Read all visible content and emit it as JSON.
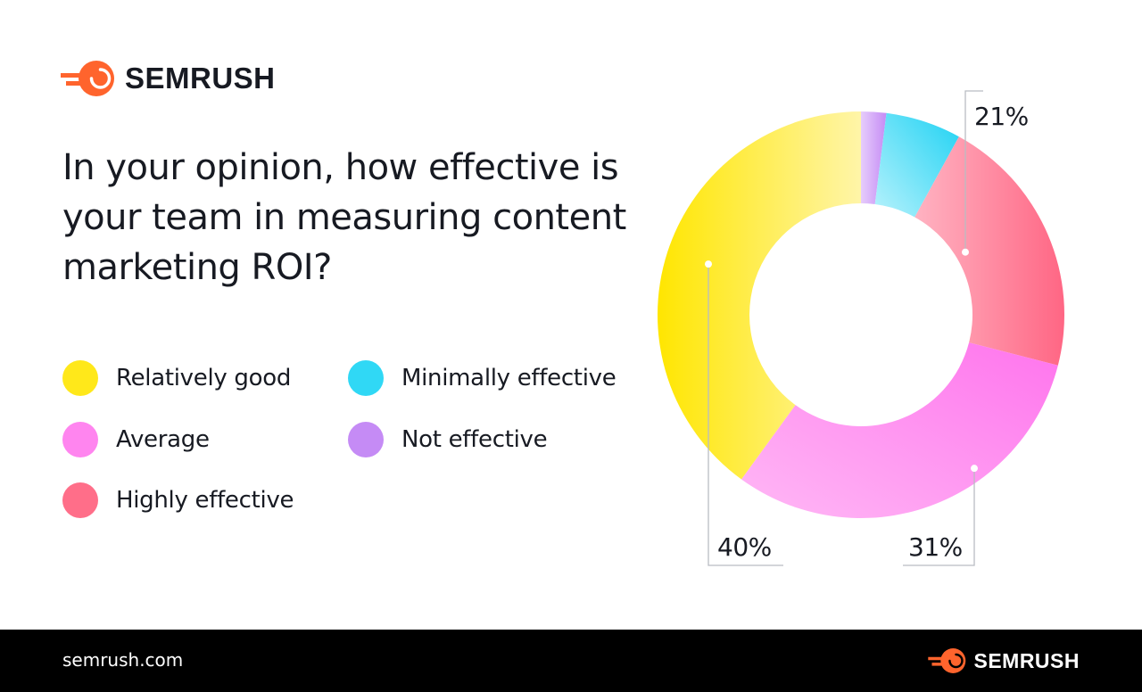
{
  "brand": {
    "name": "SEMRUSH",
    "accent_color": "#ff642d"
  },
  "question": "In your opinion, how effective is your team in measuring content marketing ROI?",
  "legend": [
    {
      "label": "Relatively good",
      "color": "#ffe81a"
    },
    {
      "label": "Minimally effective",
      "color": "#30d8f5"
    },
    {
      "label": "Average",
      "color": "#ff85ef"
    },
    {
      "label": "Not effective",
      "color": "#c58bf5"
    },
    {
      "label": "Highly effective",
      "color": "#ff6e89"
    }
  ],
  "chart_data": {
    "type": "pie",
    "variant": "donut",
    "start": "top",
    "direction": "clockwise",
    "slices": [
      {
        "label": "Not effective",
        "value": 2,
        "color": "#d0a6f6"
      },
      {
        "label": "Minimally effective",
        "value": 6,
        "color": "#47dcf6"
      },
      {
        "label": "Highly effective",
        "value": 21,
        "color": "#ff7f97"
      },
      {
        "label": "Average",
        "value": 31,
        "color": "#ff9bf2"
      },
      {
        "label": "Relatively good",
        "value": 40,
        "color": "#ffec2e"
      }
    ],
    "data_labels": [
      {
        "slice": "Highly effective",
        "text": "21%"
      },
      {
        "slice": "Average",
        "text": "31%"
      },
      {
        "slice": "Relatively good",
        "text": "40%"
      }
    ]
  },
  "footer": {
    "url": "semrush.com"
  }
}
